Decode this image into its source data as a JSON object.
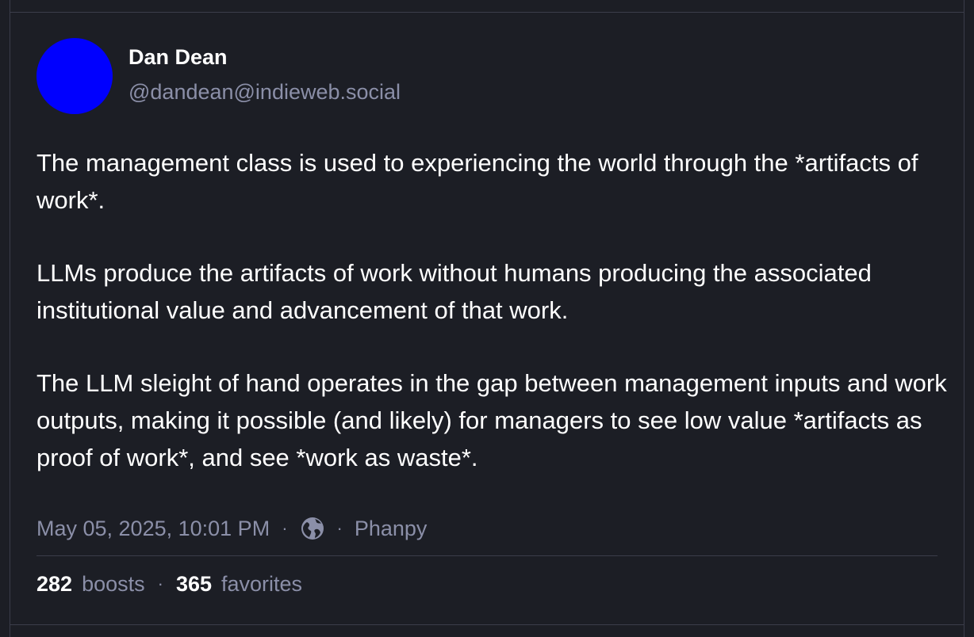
{
  "colors": {
    "background": "#1c1e25",
    "avatar": "#0000ff",
    "text_primary": "#ffffff",
    "text_muted": "#8b8fa8",
    "border": "#3b3d4a"
  },
  "post": {
    "author": {
      "display_name": "Dan Dean",
      "handle": "@dandean@indieweb.social"
    },
    "paragraphs": [
      "The management class is used to experiencing the world through the *artifacts of work*.",
      "LLMs produce the artifacts of work without humans producing the associated institutional value and advancement of that work.",
      "The LLM sleight of hand operates in the gap between management inputs and work outputs, making it possible (and likely) for managers to see low value *artifacts as proof of work*, and see *work as waste*."
    ],
    "meta": {
      "timestamp": "May 05, 2025, 10:01 PM",
      "separator": "·",
      "visibility_icon": "globe-icon",
      "client": "Phanpy"
    },
    "stats": {
      "boosts_count": "282",
      "boosts_label": "boosts",
      "separator": "·",
      "favorites_count": "365",
      "favorites_label": "favorites"
    }
  }
}
